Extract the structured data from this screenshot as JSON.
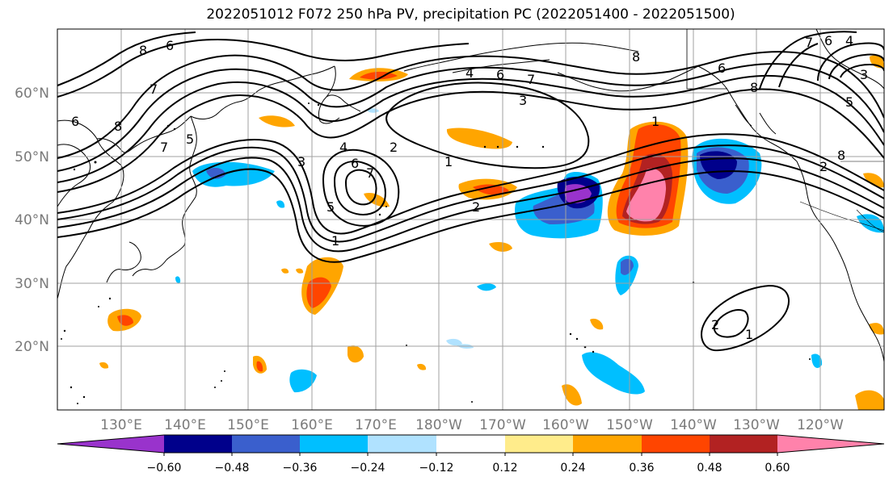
{
  "title": "2022051012 F072 250 hPa PV, precipitation PC (2022051400 - 2022051500)",
  "map": {
    "lat_ticks": [
      "60°N",
      "50°N",
      "40°N",
      "30°N",
      "20°N"
    ],
    "lon_ticks": [
      "130°E",
      "140°E",
      "150°E",
      "160°E",
      "170°E",
      "180°W",
      "170°W",
      "160°W",
      "150°W",
      "140°W",
      "130°W",
      "120°W"
    ],
    "grid": true,
    "pv_contour_color": "#000000",
    "pv_contour_labels": [
      "8",
      "7",
      "6",
      "6",
      "8",
      "7",
      "5",
      "4",
      "6",
      "7",
      "3",
      "1",
      "2",
      "1",
      "5",
      "4",
      "6",
      "7",
      "3",
      "2",
      "1",
      "8",
      "6",
      "8",
      "7",
      "6",
      "4",
      "3",
      "5",
      "8",
      "2",
      "1",
      "2"
    ]
  },
  "colorbar": {
    "orientation": "horizontal",
    "extend": "both",
    "tick_labels": [
      "−0.60",
      "−0.48",
      "−0.36",
      "−0.24",
      "−0.12",
      "0.12",
      "0.24",
      "0.36",
      "0.48",
      "0.60"
    ],
    "colors": [
      "#9933cc",
      "#00008b",
      "#3a5fcd",
      "#00bfff",
      "#b0e2ff",
      "#ffffff",
      "#ffec8b",
      "#ffa500",
      "#ff4500",
      "#b22222",
      "#ff82ab"
    ]
  }
}
